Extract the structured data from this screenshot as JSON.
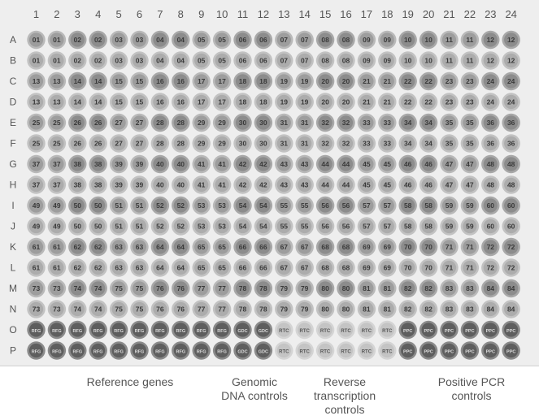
{
  "columns": [
    "1",
    "2",
    "3",
    "4",
    "5",
    "6",
    "7",
    "8",
    "9",
    "10",
    "11",
    "12",
    "13",
    "14",
    "15",
    "16",
    "17",
    "18",
    "19",
    "20",
    "21",
    "22",
    "23",
    "24"
  ],
  "rows": [
    "A",
    "B",
    "C",
    "D",
    "E",
    "F",
    "G",
    "H",
    "I",
    "J",
    "K",
    "L",
    "M",
    "N",
    "O",
    "P"
  ],
  "wells": [
    [
      "01",
      "01",
      "02",
      "02",
      "03",
      "03",
      "04",
      "04",
      "05",
      "05",
      "06",
      "06",
      "07",
      "07",
      "08",
      "08",
      "09",
      "09",
      "10",
      "10",
      "11",
      "11",
      "12",
      "12"
    ],
    [
      "01",
      "01",
      "02",
      "02",
      "03",
      "03",
      "04",
      "04",
      "05",
      "05",
      "06",
      "06",
      "07",
      "07",
      "08",
      "08",
      "09",
      "09",
      "10",
      "10",
      "11",
      "11",
      "12",
      "12"
    ],
    [
      "13",
      "13",
      "14",
      "14",
      "15",
      "15",
      "16",
      "16",
      "17",
      "17",
      "18",
      "18",
      "19",
      "19",
      "20",
      "20",
      "21",
      "21",
      "22",
      "22",
      "23",
      "23",
      "24",
      "24"
    ],
    [
      "13",
      "13",
      "14",
      "14",
      "15",
      "15",
      "16",
      "16",
      "17",
      "17",
      "18",
      "18",
      "19",
      "19",
      "20",
      "20",
      "21",
      "21",
      "22",
      "22",
      "23",
      "23",
      "24",
      "24"
    ],
    [
      "25",
      "25",
      "26",
      "26",
      "27",
      "27",
      "28",
      "28",
      "29",
      "29",
      "30",
      "30",
      "31",
      "31",
      "32",
      "32",
      "33",
      "33",
      "34",
      "34",
      "35",
      "35",
      "36",
      "36"
    ],
    [
      "25",
      "25",
      "26",
      "26",
      "27",
      "27",
      "28",
      "28",
      "29",
      "29",
      "30",
      "30",
      "31",
      "31",
      "32",
      "32",
      "33",
      "33",
      "34",
      "34",
      "35",
      "35",
      "36",
      "36"
    ],
    [
      "37",
      "37",
      "38",
      "38",
      "39",
      "39",
      "40",
      "40",
      "41",
      "41",
      "42",
      "42",
      "43",
      "43",
      "44",
      "44",
      "45",
      "45",
      "46",
      "46",
      "47",
      "47",
      "48",
      "48"
    ],
    [
      "37",
      "37",
      "38",
      "38",
      "39",
      "39",
      "40",
      "40",
      "41",
      "41",
      "42",
      "42",
      "43",
      "43",
      "44",
      "44",
      "45",
      "45",
      "46",
      "46",
      "47",
      "47",
      "48",
      "48"
    ],
    [
      "49",
      "49",
      "50",
      "50",
      "51",
      "51",
      "52",
      "52",
      "53",
      "53",
      "54",
      "54",
      "55",
      "55",
      "56",
      "56",
      "57",
      "57",
      "58",
      "58",
      "59",
      "59",
      "60",
      "60"
    ],
    [
      "49",
      "49",
      "50",
      "50",
      "51",
      "51",
      "52",
      "52",
      "53",
      "53",
      "54",
      "54",
      "55",
      "55",
      "56",
      "56",
      "57",
      "57",
      "58",
      "58",
      "59",
      "59",
      "60",
      "60"
    ],
    [
      "61",
      "61",
      "62",
      "62",
      "63",
      "63",
      "64",
      "64",
      "65",
      "65",
      "66",
      "66",
      "67",
      "67",
      "68",
      "68",
      "69",
      "69",
      "70",
      "70",
      "71",
      "71",
      "72",
      "72"
    ],
    [
      "61",
      "61",
      "62",
      "62",
      "63",
      "63",
      "64",
      "64",
      "65",
      "65",
      "66",
      "66",
      "67",
      "67",
      "68",
      "68",
      "69",
      "69",
      "70",
      "70",
      "71",
      "71",
      "72",
      "72"
    ],
    [
      "73",
      "73",
      "74",
      "74",
      "75",
      "75",
      "76",
      "76",
      "77",
      "77",
      "78",
      "78",
      "79",
      "79",
      "80",
      "80",
      "81",
      "81",
      "82",
      "82",
      "83",
      "83",
      "84",
      "84"
    ],
    [
      "73",
      "73",
      "74",
      "74",
      "75",
      "75",
      "76",
      "76",
      "77",
      "77",
      "78",
      "78",
      "79",
      "79",
      "80",
      "80",
      "81",
      "81",
      "82",
      "82",
      "83",
      "83",
      "84",
      "84"
    ],
    [
      "RFG",
      "RFG",
      "RFG",
      "RFG",
      "RFG",
      "RFG",
      "RFG",
      "RFG",
      "RFG",
      "RFG",
      "GDC",
      "GDC",
      "RTC",
      "RTC",
      "RTC",
      "RTC",
      "RTC",
      "RTC",
      "PPC",
      "PPC",
      "PPC",
      "PPC",
      "PPC",
      "PPC"
    ],
    [
      "RFG",
      "RFG",
      "RFG",
      "RFG",
      "RFG",
      "RFG",
      "RFG",
      "RFG",
      "RFG",
      "RFG",
      "GDC",
      "GDC",
      "RTC",
      "RTC",
      "RTC",
      "RTC",
      "RTC",
      "RTC",
      "PPC",
      "PPC",
      "PPC",
      "PPC",
      "PPC",
      "PPC"
    ]
  ],
  "colors": {
    "plate_bg": "#eeeeee",
    "light_outer": "#b9b9b9",
    "light_inner": "#9d9d9d",
    "dark_outer": "#8a8a8a",
    "dark_inner": "#5e5e5e",
    "rtc_outer": "#d4d4d4",
    "rtc_inner": "#c4c4c4"
  },
  "legend": {
    "reference_genes": "Reference genes",
    "genomic_dna_controls": "Genomic DNA controls",
    "reverse_transcription_controls": "Reverse transcription controls",
    "positive_pcr_controls": "Positive PCR controls"
  }
}
